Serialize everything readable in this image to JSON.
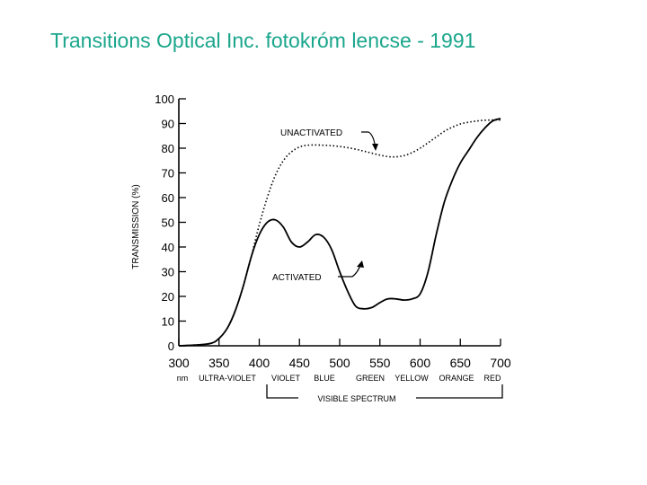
{
  "slide": {
    "title": "Transitions Optical Inc.  fotokróm lencse - 1991"
  },
  "chart_data": {
    "type": "line",
    "title": "",
    "xlabel": "",
    "ylabel": "TRANSMISSION (%)",
    "xlim": [
      300,
      700
    ],
    "ylim": [
      0,
      100
    ],
    "x_ticks": [
      "300",
      "350",
      "400",
      "450",
      "500",
      "550",
      "600",
      "650",
      "700"
    ],
    "y_ticks": [
      "0",
      "10",
      "20",
      "30",
      "40",
      "50",
      "60",
      "70",
      "80",
      "90",
      "100"
    ],
    "x_unit": "nm",
    "color_bands": [
      "ULTRA-VIOLET",
      "VIOLET",
      "BLUE",
      "GREEN",
      "YELLOW",
      "ORANGE",
      "RED"
    ],
    "spectrum_label": "VISIBLE SPECTRUM",
    "grid": false,
    "series": [
      {
        "name": "UNACTIVATED",
        "style": "dotted",
        "x": [
          300,
          320,
          340,
          350,
          360,
          370,
          380,
          390,
          400,
          410,
          420,
          430,
          440,
          450,
          460,
          470,
          480,
          490,
          500,
          510,
          520,
          530,
          540,
          550,
          560,
          570,
          580,
          590,
          600,
          610,
          620,
          630,
          640,
          650,
          660,
          670,
          680,
          690,
          700
        ],
        "values": [
          0,
          0.3,
          1,
          3,
          7,
          14,
          24,
          36,
          49,
          60,
          69,
          75,
          78.5,
          80.5,
          81.2,
          81.3,
          81.2,
          81,
          80.7,
          80.2,
          79.6,
          78.8,
          78,
          77.2,
          76.6,
          76.5,
          77,
          78.2,
          80,
          82.2,
          84.5,
          86.8,
          88.5,
          89.8,
          90.5,
          91,
          91.3,
          91.4,
          91.4
        ]
      },
      {
        "name": "ACTIVATED",
        "style": "solid",
        "x": [
          300,
          320,
          340,
          350,
          360,
          370,
          380,
          390,
          400,
          410,
          420,
          430,
          440,
          450,
          460,
          470,
          480,
          490,
          500,
          510,
          520,
          530,
          540,
          550,
          560,
          570,
          580,
          590,
          600,
          610,
          620,
          630,
          640,
          650,
          660,
          670,
          680,
          690,
          700
        ],
        "values": [
          0,
          0.3,
          1,
          3,
          7,
          14,
          24,
          36,
          45,
          50,
          51,
          48,
          42,
          40,
          42,
          45,
          44,
          39,
          30,
          22,
          16,
          15,
          15.5,
          17.5,
          19,
          19,
          18.5,
          19,
          21,
          30,
          45,
          58,
          67,
          74,
          79,
          84,
          88,
          91,
          92
        ]
      }
    ],
    "annotations": [
      "UNACTIVATED",
      "ACTIVATED"
    ]
  }
}
